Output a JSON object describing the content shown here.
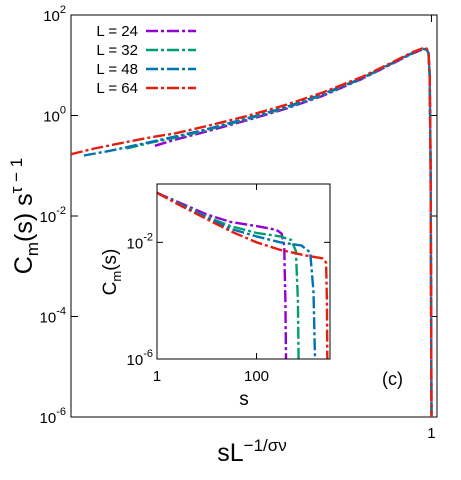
{
  "chart_data": [
    {
      "type": "line",
      "xscale": "log",
      "yscale": "log",
      "xlim": [
        0.002,
        1.1
      ],
      "ylim": [
        1e-06,
        100
      ],
      "ylabel": "C_m(s) s^(τ − 1)",
      "xlabel": "sL^(−1/σν)",
      "y_tick_labels": [
        {
          "base": "10",
          "exp": "2",
          "value": 100
        },
        {
          "base": "10",
          "exp": "0",
          "value": 1
        },
        {
          "base": "10",
          "exp": "-2",
          "value": 0.01
        },
        {
          "base": "10",
          "exp": "-4",
          "value": 0.0001
        },
        {
          "base": "10",
          "exp": "-6",
          "value": 1e-06
        }
      ],
      "x_tick_labels": [
        {
          "label": "1",
          "value": 1
        }
      ],
      "panel_label": "(c)",
      "legend_position": "top-left",
      "series": [
        {
          "name": "L = 24",
          "color": "#9400d3",
          "x": [
            0.0085,
            0.012,
            0.02,
            0.04,
            0.08,
            0.15,
            0.3,
            0.5,
            0.7,
            0.85,
            0.92,
            0.95,
            0.97,
            0.985,
            1.0
          ],
          "y": [
            0.25,
            0.33,
            0.47,
            0.78,
            1.35,
            2.4,
            5.3,
            10.5,
            16.5,
            20.5,
            20.5,
            17.0,
            6.0,
            0.1,
            1e-06
          ]
        },
        {
          "name": "L = 32",
          "color": "#009e73",
          "x": [
            0.0052,
            0.008,
            0.012,
            0.02,
            0.04,
            0.08,
            0.15,
            0.3,
            0.5,
            0.7,
            0.85,
            0.92,
            0.95,
            0.97,
            0.985,
            1.0
          ],
          "y": [
            0.22,
            0.29,
            0.36,
            0.5,
            0.82,
            1.4,
            2.5,
            5.4,
            10.7,
            16.8,
            20.8,
            20.8,
            17.2,
            6.0,
            0.1,
            1e-06
          ]
        },
        {
          "name": "L = 48",
          "color": "#0072b2",
          "x": [
            0.0025,
            0.004,
            0.008,
            0.012,
            0.02,
            0.04,
            0.08,
            0.15,
            0.3,
            0.5,
            0.7,
            0.85,
            0.92,
            0.95,
            0.97,
            0.985,
            1.0
          ],
          "y": [
            0.16,
            0.2,
            0.3,
            0.38,
            0.52,
            0.85,
            1.45,
            2.6,
            5.5,
            10.8,
            17.0,
            21.0,
            21.0,
            17.5,
            6.0,
            0.1,
            1e-06
          ]
        },
        {
          "name": "L = 64",
          "color": "#e51e10",
          "x": [
            0.002,
            0.003,
            0.005,
            0.008,
            0.012,
            0.02,
            0.04,
            0.08,
            0.15,
            0.3,
            0.5,
            0.7,
            0.85,
            0.92,
            0.95,
            0.97,
            0.985,
            1.0
          ],
          "y": [
            0.17,
            0.22,
            0.29,
            0.37,
            0.44,
            0.6,
            0.95,
            1.6,
            2.8,
            5.8,
            11.2,
            17.5,
            21.5,
            21.5,
            18.0,
            6.0,
            0.1,
            1e-06
          ]
        }
      ]
    },
    {
      "type": "line",
      "xscale": "log",
      "yscale": "log",
      "xlim": [
        1,
        3000
      ],
      "ylim": [
        1e-06,
        1
      ],
      "xlabel": "s",
      "ylabel": "C_m(s)",
      "y_tick_labels": [
        {
          "base": "10",
          "exp": "-2",
          "value": 0.01
        },
        {
          "base": "10",
          "exp": "-6",
          "value": 1e-06
        }
      ],
      "x_tick_labels": [
        {
          "label": "1",
          "value": 1
        },
        {
          "label": "100",
          "value": 100
        }
      ],
      "series": [
        {
          "name": "L = 24",
          "color": "#9400d3",
          "x": [
            1,
            3,
            10,
            30,
            100,
            250,
            320,
            360,
            380,
            392
          ],
          "y": [
            0.5,
            0.22,
            0.09,
            0.05,
            0.036,
            0.027,
            0.02,
            0.008,
            0.0001,
            1e-06
          ]
        },
        {
          "name": "L = 32",
          "color": "#009e73",
          "x": [
            1,
            3,
            10,
            30,
            100,
            300,
            500,
            620,
            680,
            700
          ],
          "y": [
            0.5,
            0.2,
            0.075,
            0.036,
            0.021,
            0.016,
            0.012,
            0.005,
            0.0001,
            1e-06
          ]
        },
        {
          "name": "L = 48",
          "color": "#0072b2",
          "x": [
            1,
            3,
            10,
            30,
            100,
            300,
            800,
            1200,
            1400,
            1500
          ],
          "y": [
            0.5,
            0.19,
            0.07,
            0.029,
            0.016,
            0.01,
            0.0078,
            0.0045,
            0.0002,
            1e-06
          ]
        },
        {
          "name": "L = 64",
          "color": "#e51e10",
          "x": [
            1,
            3,
            10,
            30,
            100,
            300,
            1000,
            2200,
            2500,
            2600,
            2650
          ],
          "y": [
            0.5,
            0.18,
            0.062,
            0.024,
            0.01,
            0.0055,
            0.0035,
            0.0028,
            0.002,
            0.0001,
            1e-06
          ]
        }
      ]
    }
  ]
}
